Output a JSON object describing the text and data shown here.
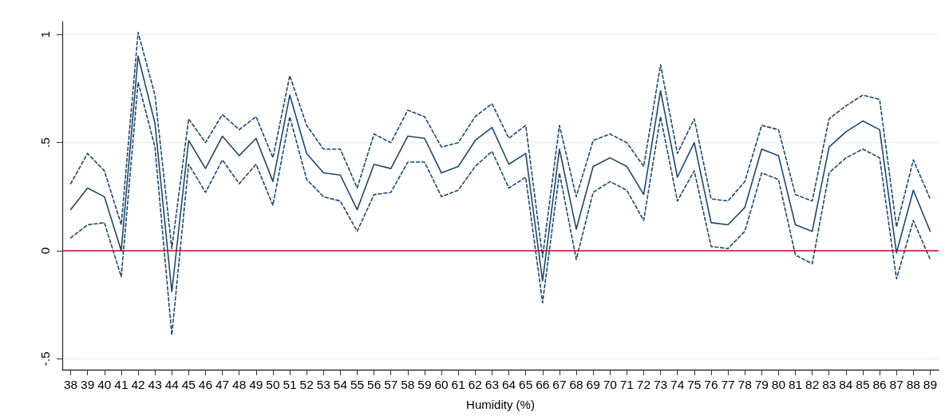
{
  "chart_data": {
    "type": "line",
    "xlabel": "Humidity (%)",
    "categories": [
      "38",
      "39",
      "40",
      "41",
      "42",
      "43",
      "44",
      "45",
      "46",
      "47",
      "48",
      "49",
      "50",
      "51",
      "52",
      "53",
      "54",
      "55",
      "56",
      "57",
      "58",
      "59",
      "60",
      "61",
      "62",
      "63",
      "64",
      "65",
      "66",
      "67",
      "68",
      "69",
      "70",
      "71",
      "72",
      "73",
      "74",
      "75",
      "76",
      "77",
      "78",
      "79",
      "80",
      "81",
      "82",
      "83",
      "84",
      "85",
      "86",
      "87",
      "88",
      "89"
    ],
    "series": [
      {
        "color": "#1a476f",
        "line_style": "solid",
        "values": [
          0.19,
          0.29,
          0.25,
          0.0,
          0.9,
          0.59,
          -0.19,
          0.51,
          0.38,
          0.53,
          0.44,
          0.52,
          0.32,
          0.72,
          0.45,
          0.36,
          0.35,
          0.19,
          0.4,
          0.38,
          0.53,
          0.52,
          0.36,
          0.39,
          0.51,
          0.57,
          0.4,
          0.45,
          -0.14,
          0.47,
          0.1,
          0.39,
          0.43,
          0.39,
          0.26,
          0.74,
          0.34,
          0.5,
          0.13,
          0.12,
          0.2,
          0.47,
          0.44,
          0.12,
          0.09,
          0.48,
          0.55,
          0.6,
          0.56,
          -0.01,
          0.28,
          0.09
        ]
      },
      {
        "color": "#1a476f",
        "line_style": "dashed",
        "values": [
          0.31,
          0.45,
          0.37,
          0.12,
          1.01,
          0.72,
          0.01,
          0.61,
          0.5,
          0.63,
          0.56,
          0.62,
          0.43,
          0.81,
          0.58,
          0.47,
          0.47,
          0.29,
          0.54,
          0.5,
          0.65,
          0.62,
          0.48,
          0.5,
          0.62,
          0.68,
          0.52,
          0.58,
          -0.03,
          0.58,
          0.25,
          0.51,
          0.54,
          0.5,
          0.39,
          0.86,
          0.45,
          0.61,
          0.24,
          0.23,
          0.32,
          0.58,
          0.56,
          0.26,
          0.23,
          0.61,
          0.67,
          0.72,
          0.7,
          0.11,
          0.42,
          0.24
        ]
      },
      {
        "color": "#1a476f",
        "line_style": "dashed",
        "values": [
          0.06,
          0.12,
          0.13,
          -0.12,
          0.78,
          0.48,
          -0.39,
          0.4,
          0.27,
          0.42,
          0.31,
          0.4,
          0.21,
          0.62,
          0.33,
          0.25,
          0.23,
          0.09,
          0.26,
          0.27,
          0.41,
          0.41,
          0.25,
          0.28,
          0.39,
          0.46,
          0.29,
          0.34,
          -0.24,
          0.36,
          -0.04,
          0.27,
          0.32,
          0.28,
          0.14,
          0.62,
          0.23,
          0.37,
          0.02,
          0.01,
          0.09,
          0.36,
          0.33,
          -0.02,
          -0.06,
          0.36,
          0.43,
          0.47,
          0.43,
          -0.13,
          0.14,
          -0.04
        ]
      }
    ],
    "ylim": [
      -0.55,
      1.06
    ],
    "yticks": [
      {
        "value": -0.5,
        "label": "-.5"
      },
      {
        "value": 0,
        "label": "0"
      },
      {
        "value": 0.5,
        "label": ".5"
      },
      {
        "value": 1,
        "label": "1"
      }
    ],
    "ref_lines": [
      {
        "axis": "y",
        "value": 0,
        "color": "#c10534",
        "line_style": "solid"
      }
    ],
    "grid": "y",
    "marker": "none"
  }
}
